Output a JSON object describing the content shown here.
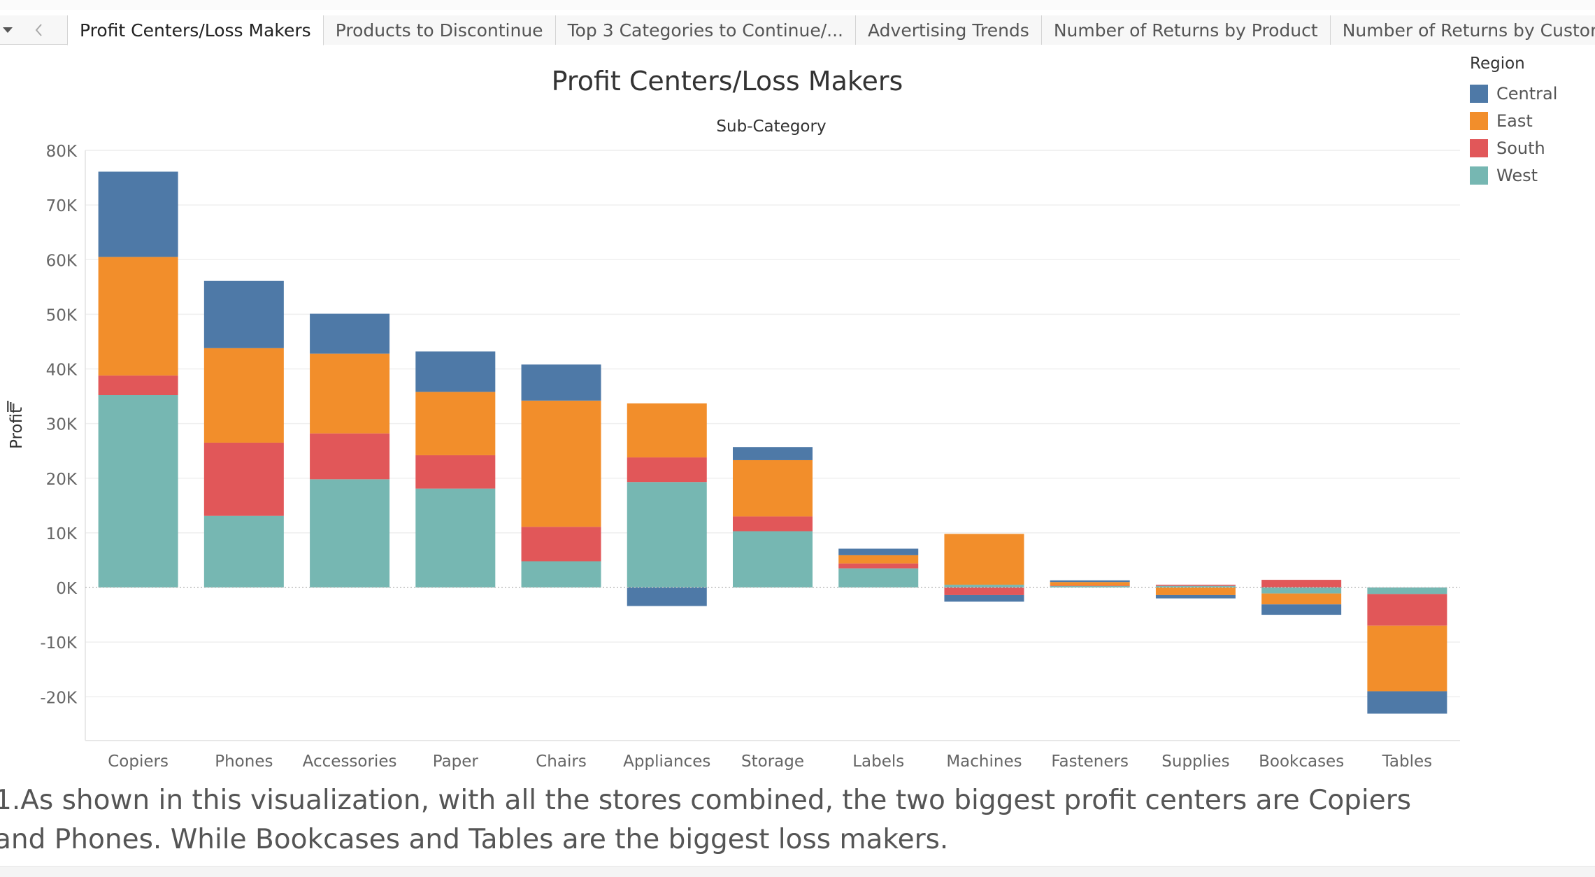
{
  "tabs": [
    {
      "label": "Profit Centers/Loss Makers",
      "active": true
    },
    {
      "label": "Products to Discontinue",
      "active": false
    },
    {
      "label": "Top 3 Categories to Continue/...",
      "active": false
    },
    {
      "label": "Advertising Trends",
      "active": false
    },
    {
      "label": "Number of Returns by Product",
      "active": false
    },
    {
      "label": "Number of Returns by Customer",
      "active": false
    }
  ],
  "legend": {
    "title": "Region",
    "items": [
      {
        "label": "Central",
        "color": "#4e79a7"
      },
      {
        "label": "East",
        "color": "#f28e2b"
      },
      {
        "label": "South",
        "color": "#e15759"
      },
      {
        "label": "West",
        "color": "#76b7b2"
      }
    ]
  },
  "caption": "1.As shown in this visualization, with all the stores combined, the two biggest profit centers are Copiers and Phones. While Bookcases and Tables are the biggest loss makers.",
  "chart_data": {
    "type": "bar",
    "stacked": true,
    "title": "Profit Centers/Loss Makers",
    "subtitle": "Sub-Category",
    "xlabel": "",
    "ylabel": "Profit",
    "ylim": [
      -28000,
      80000
    ],
    "yticks": [
      -20000,
      -10000,
      0,
      10000,
      20000,
      30000,
      40000,
      50000,
      60000,
      70000,
      80000
    ],
    "ytick_labels": [
      "-20K",
      "-10K",
      "0K",
      "10K",
      "20K",
      "30K",
      "40K",
      "50K",
      "60K",
      "70K",
      "80K"
    ],
    "grid": true,
    "legend_position": "top-right",
    "categories": [
      "Copiers",
      "Phones",
      "Accessories",
      "Paper",
      "Chairs",
      "Appliances",
      "Storage",
      "Labels",
      "Machines",
      "Fasteners",
      "Supplies",
      "Bookcases",
      "Tables"
    ],
    "series": [
      {
        "name": "West",
        "color": "#76b7b2",
        "values": [
          35200,
          13100,
          19800,
          18100,
          4800,
          19300,
          10300,
          3500,
          500,
          250,
          300,
          -1100,
          -1200
        ]
      },
      {
        "name": "South",
        "color": "#e15759",
        "values": [
          3600,
          13400,
          8400,
          6100,
          6300,
          4500,
          2700,
          900,
          -1400,
          100,
          200,
          1400,
          -5800
        ]
      },
      {
        "name": "East",
        "color": "#f28e2b",
        "values": [
          21700,
          17300,
          14600,
          11600,
          23100,
          9900,
          10300,
          1500,
          9300,
          650,
          -1400,
          -2000,
          -12000
        ]
      },
      {
        "name": "Central",
        "color": "#4e79a7",
        "values": [
          15600,
          12300,
          7300,
          7400,
          6600,
          -3400,
          2400,
          1200,
          -1200,
          300,
          -600,
          -1900,
          -4100
        ]
      }
    ]
  }
}
